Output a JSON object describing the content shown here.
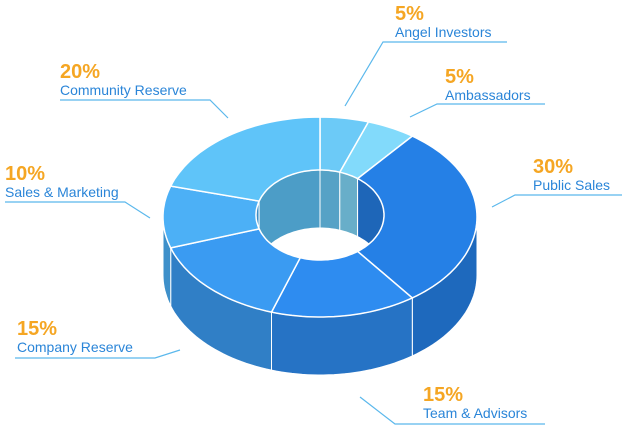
{
  "chart_data": {
    "type": "pie",
    "categories": [
      "Angel Investors",
      "Ambassadors",
      "Public Sales",
      "Team & Advisors",
      "Company Reserve",
      "Sales & Marketing",
      "Community Reserve"
    ],
    "values": [
      5,
      5,
      30,
      15,
      15,
      10,
      20
    ],
    "value_labels": [
      "5%",
      "5%",
      "30%",
      "15%",
      "15%",
      "10%",
      "20%"
    ],
    "colors": [
      "#6ccaf7",
      "#82dafb",
      "#2580e6",
      "#2e8cf0",
      "#3a9bf2",
      "#4cb0f6",
      "#5fc4f9"
    ]
  }
}
